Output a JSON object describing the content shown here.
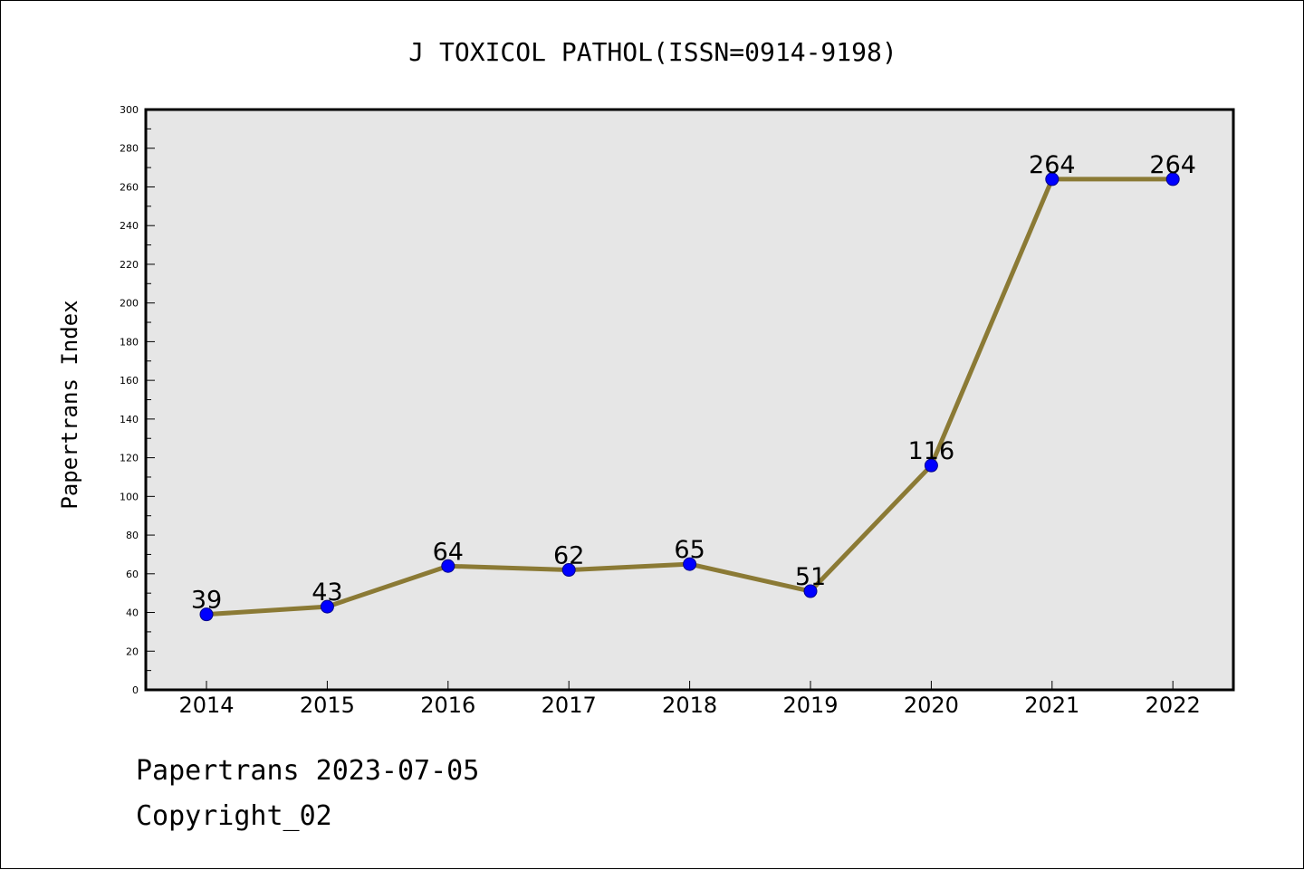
{
  "chart_data": {
    "type": "line",
    "title": "J TOXICOL PATHOL(ISSN=0914-9198)",
    "xlabel": "",
    "ylabel": "Papertrans Index",
    "categories": [
      "2014",
      "2015",
      "2016",
      "2017",
      "2018",
      "2019",
      "2020",
      "2021",
      "2022"
    ],
    "series": [
      {
        "values": [
          39,
          43,
          64,
          62,
          65,
          51,
          116,
          264,
          264
        ]
      }
    ],
    "ylim": [
      0,
      300
    ],
    "yticks": [
      0,
      20,
      40,
      60,
      80,
      100,
      120,
      140,
      160,
      180,
      200,
      220,
      240,
      260,
      280,
      300
    ],
    "grid": false,
    "legend": "none",
    "colors": {
      "line": "#8b7a35",
      "marker": "#0000ff",
      "plot_background": "#e6e6e6"
    }
  },
  "footer": {
    "line1": "Papertrans 2023-07-05",
    "line2": "Copyright_02"
  }
}
